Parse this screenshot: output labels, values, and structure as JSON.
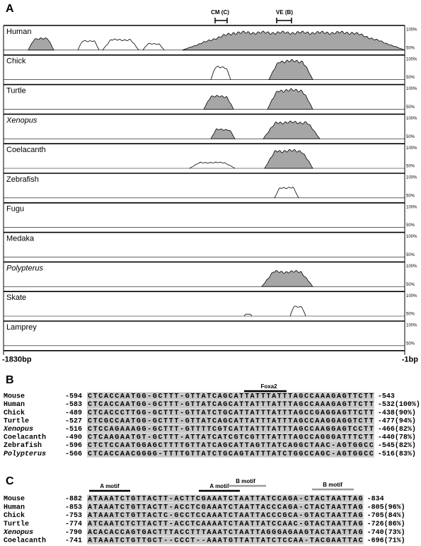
{
  "panel_a": {
    "label": "A",
    "markers": [
      "CM (C)",
      "VE (B)"
    ],
    "tracks": [
      {
        "name": "Human"
      },
      {
        "name": "Chick"
      },
      {
        "name": "Turtle"
      },
      {
        "name": "Xenopus",
        "italic": true
      },
      {
        "name": "Coelacanth"
      },
      {
        "name": "Zebrafish"
      },
      {
        "name": "Fugu"
      },
      {
        "name": "Medaka"
      },
      {
        "name": "Polypterus",
        "italic": true
      },
      {
        "name": "Skate"
      },
      {
        "name": "Lamprey"
      }
    ],
    "scale_labels": [
      "100%",
      "50%"
    ],
    "axis_labels": [
      "-1830bp",
      "-1bp"
    ]
  },
  "panel_b": {
    "label": "B",
    "motif": "Foxa2",
    "rows": [
      {
        "name": "Mouse",
        "start": "-594",
        "sequence": "CTCACCAATGG-GCTTT-GTTATCAGCATTATTTATTTAGCCAAAGAGTTCTT",
        "end": "-543"
      },
      {
        "name": "Human",
        "start": "-583",
        "sequence": "CTCACCAATGG-GCTTT-GTTATCAGCATTATTTATTTAGCCAAAGAGTTCTT",
        "end": "-532(100%)"
      },
      {
        "name": "Chick",
        "start": "-489",
        "sequence": "CTCACCCTTGG-GCTTT-GTTATCTGCATTATTTATTTAGCCGAGGAGTTCTT",
        "end": "-438(90%)"
      },
      {
        "name": "Turtle",
        "start": "-527",
        "sequence": "CTCGCCAATGG-GCTTT-GTTATCAGCATTATTTATTTAGCCAAGGAGGTCTT",
        "end": "-477(94%)"
      },
      {
        "name": "Xenopus",
        "italic": true,
        "start": "-516",
        "sequence": "CTCCAGAAAGG-GCTTT-GTTTTCGTCATTATTTATTTAGCCAAGGAGTCCTT",
        "end": "-466(82%)"
      },
      {
        "name": "Coelacanth",
        "start": "-490",
        "sequence": "CTCAAGAATGT-GCTTT-ATTATCATCGTCGTTTATTTAGCCAGGGATTTCTT",
        "end": "-440(78%)"
      },
      {
        "name": "Zebrafish",
        "start": "-596",
        "sequence": "CTCTCCAATGGAGCTTTTGTTATCAGCATTAGTTATCAGGCTAAC-AGTGGCC",
        "end": "-545(82%)"
      },
      {
        "name": "Polypterus",
        "italic": true,
        "start": "-566",
        "sequence": "CTCACCAACGGGG-TTTTGTTATCTGCAGTATTTATCTGGCCAGC-AGTGGCC",
        "end": "-516(83%)"
      }
    ]
  },
  "panel_c": {
    "label": "C",
    "motifs": [
      "A motif",
      "A motif",
      "B motif",
      "B motif"
    ],
    "rows": [
      {
        "name": "Mouse",
        "start": "-882",
        "sequence": "ATAAATCTGTTACTT-ACTTCGAAATCTAATTATCCAGA-CTACTAATTAG",
        "end": "-834"
      },
      {
        "name": "Human",
        "start": "-853",
        "sequence": "ATAAATCTGTTACTT-ACCTCGAAATCTAATTACCCAGA-CTACTAATTAG",
        "end": "-805(96%)"
      },
      {
        "name": "Chick",
        "start": "-753",
        "sequence": "ATAAATCTGTTACTC-GCCTCCAAATCTAATTACCCGCA-GTACTAATTAG",
        "end": "-705(84%)"
      },
      {
        "name": "Turtle",
        "start": "-774",
        "sequence": "ATCAATCTCTTACTT-ACCTCAAAATCTAATTATCCAAC-GTACTAATTAG",
        "end": "-726(86%)"
      },
      {
        "name": "Xenopus",
        "italic": true,
        "start": "-790",
        "sequence": "ACACACCAGTGACTTTACCTTTAAATCTAATTAGGGAGAAGTACTAATTAG",
        "end": "-740(73%)"
      },
      {
        "name": "Coelacanth",
        "start": "-741",
        "sequence": "ATAAATCTGTTGCT--CCCT--AAATGTTATTATCTCCAA-TACGAATTAC",
        "end": "-696(71%)"
      }
    ]
  }
}
